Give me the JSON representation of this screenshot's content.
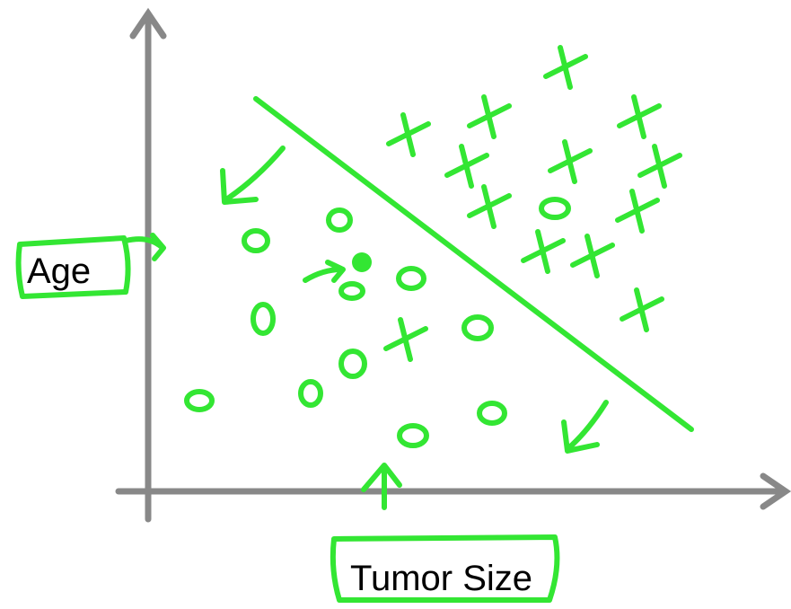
{
  "labels": {
    "y_axis": "Age",
    "x_axis": "Tumor Size"
  }
}
